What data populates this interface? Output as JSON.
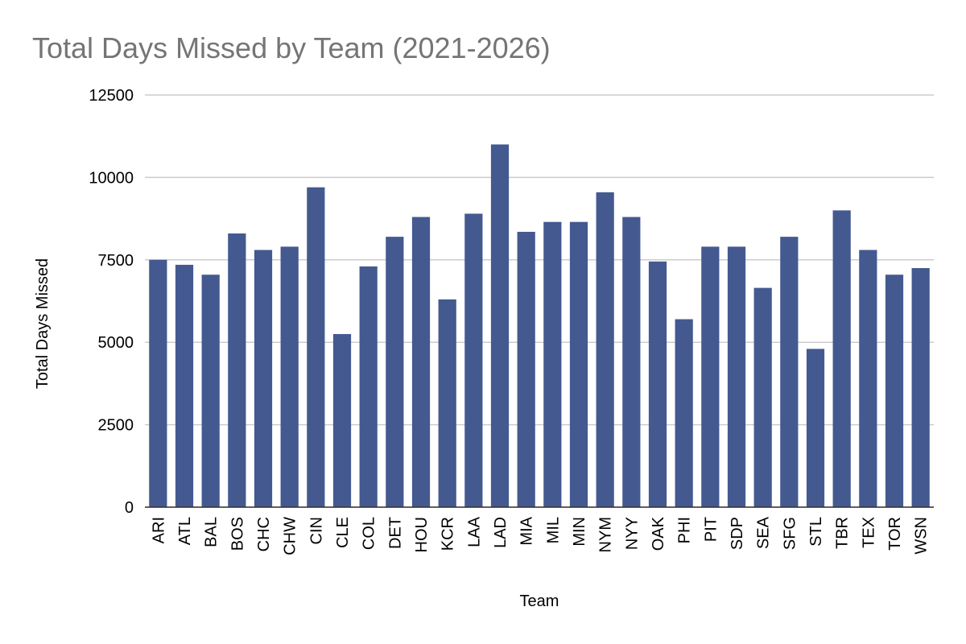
{
  "chart_data": {
    "type": "bar",
    "title": "Total Days Missed by Team (2021-2026)",
    "x_label": "Team",
    "y_label": "Total Days Missed",
    "categories": [
      "ARI",
      "ATL",
      "BAL",
      "BOS",
      "CHC",
      "CHW",
      "CIN",
      "CLE",
      "COL",
      "DET",
      "HOU",
      "KCR",
      "LAA",
      "LAD",
      "MIA",
      "MIL",
      "MIN",
      "NYM",
      "NYY",
      "OAK",
      "PHI",
      "PIT",
      "SDP",
      "SEA",
      "SFG",
      "STL",
      "TBR",
      "TEX",
      "TOR",
      "WSN"
    ],
    "values": [
      7500,
      7350,
      7050,
      8300,
      7800,
      7900,
      9700,
      5250,
      7300,
      8200,
      8800,
      6300,
      8900,
      11000,
      8350,
      8650,
      8650,
      9550,
      8800,
      7450,
      5700,
      7900,
      7900,
      6650,
      8200,
      4800,
      9000,
      7800,
      7050,
      7250
    ],
    "color": "#44598f",
    "ylim": [
      0,
      12500
    ],
    "yticks": [
      0,
      2500,
      5000,
      7500,
      10000,
      12500
    ],
    "grid": true
  }
}
